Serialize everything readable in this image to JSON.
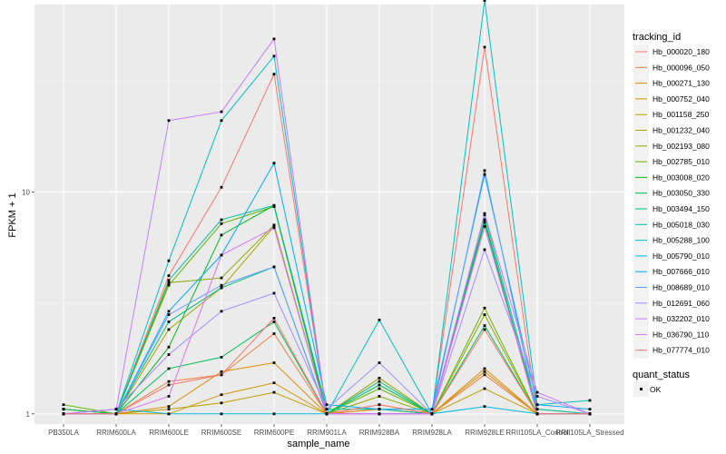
{
  "chart_data": {
    "type": "line",
    "xlabel": "sample_name",
    "ylabel": "FPKM + 1",
    "y_scale": "log10",
    "y_ticks": [
      1,
      10
    ],
    "ylim": [
      0.9,
      70
    ],
    "categories": [
      "PB350LA",
      "RRIM600LA",
      "RRIM600LE",
      "RRIM600SE",
      "RRIM600PE",
      "RRIM901LA",
      "RRIM928BA",
      "RRIM928LA",
      "RRIM928LE",
      "RRII105LA_Control",
      "RRII105LA_Stressed"
    ],
    "grid": true,
    "legend_position": "right",
    "legend_title": "tracking_id",
    "point_legend_title": "quant_status",
    "point_legend_label": "OK",
    "series": [
      {
        "name": "Hb_000020_180",
        "color": "#F8766D",
        "values": [
          1.0,
          1.0,
          4.2,
          10.5,
          34.0,
          1.0,
          1.05,
          1.0,
          45.0,
          1.0,
          1.0
        ]
      },
      {
        "name": "Hb_000096_050",
        "color": "#EE8044",
        "values": [
          1.05,
          1.0,
          1.4,
          1.5,
          2.3,
          1.0,
          1.1,
          1.0,
          1.5,
          1.0,
          1.0
        ]
      },
      {
        "name": "Hb_000271_130",
        "color": "#E18A00",
        "values": [
          1.0,
          1.0,
          1.08,
          1.55,
          1.7,
          1.0,
          1.05,
          1.0,
          1.6,
          1.0,
          1.0
        ]
      },
      {
        "name": "Hb_000752_040",
        "color": "#D09400",
        "values": [
          1.0,
          1.0,
          1.0,
          1.22,
          1.38,
          1.0,
          1.0,
          1.0,
          1.55,
          1.0,
          1.0
        ]
      },
      {
        "name": "Hb_001158_250",
        "color": "#BE9C00",
        "values": [
          1.0,
          1.0,
          1.05,
          1.12,
          1.25,
          1.0,
          1.0,
          1.0,
          1.3,
          1.0,
          1.0
        ]
      },
      {
        "name": "Hb_001232_040",
        "color": "#A8A400",
        "values": [
          1.05,
          1.0,
          2.4,
          3.7,
          7.0,
          1.0,
          1.45,
          1.0,
          7.0,
          1.05,
          1.0
        ]
      },
      {
        "name": "Hb_002193_080",
        "color": "#8CAB00",
        "values": [
          1.05,
          1.0,
          3.9,
          4.1,
          7.1,
          1.0,
          1.2,
          1.0,
          2.8,
          1.0,
          1.0
        ]
      },
      {
        "name": "Hb_002785_010",
        "color": "#64B200",
        "values": [
          1.1,
          1.0,
          3.8,
          7.2,
          8.6,
          1.0,
          1.3,
          1.0,
          3.0,
          1.0,
          1.0
        ]
      },
      {
        "name": "Hb_003008_020",
        "color": "#00B81F",
        "values": [
          1.0,
          1.0,
          2.0,
          6.4,
          8.7,
          1.0,
          1.0,
          1.0,
          7.5,
          1.0,
          1.0
        ]
      },
      {
        "name": "Hb_003050_330",
        "color": "#00BC56",
        "values": [
          1.05,
          1.0,
          1.6,
          1.8,
          2.6,
          1.0,
          1.35,
          1.0,
          2.5,
          1.0,
          1.0
        ]
      },
      {
        "name": "Hb_003494_150",
        "color": "#00BF7D",
        "values": [
          1.0,
          1.0,
          2.6,
          3.7,
          4.6,
          1.0,
          1.4,
          1.0,
          7.3,
          1.0,
          1.0
        ]
      },
      {
        "name": "Hb_005018_030",
        "color": "#00C19F",
        "values": [
          1.0,
          1.0,
          4.0,
          7.5,
          8.7,
          1.05,
          1.05,
          1.0,
          7.9,
          1.05,
          1.0
        ]
      },
      {
        "name": "Hb_005288_100",
        "color": "#00BFC4",
        "values": [
          1.0,
          1.0,
          4.9,
          21.0,
          41.0,
          1.0,
          2.65,
          1.0,
          73.0,
          1.1,
          1.15
        ]
      },
      {
        "name": "Hb_005790_010",
        "color": "#00B8E5",
        "values": [
          1.0,
          1.05,
          1.0,
          1.0,
          1.0,
          1.0,
          1.0,
          1.0,
          1.08,
          1.0,
          1.0
        ]
      },
      {
        "name": "Hb_007666_010",
        "color": "#00ACFC",
        "values": [
          1.0,
          1.0,
          2.9,
          5.2,
          13.5,
          1.1,
          1.05,
          1.05,
          12.0,
          1.1,
          1.05
        ]
      },
      {
        "name": "Hb_008689_010",
        "color": "#619CFF",
        "values": [
          1.0,
          1.0,
          2.8,
          3.8,
          4.6,
          1.0,
          1.0,
          1.0,
          12.5,
          1.0,
          1.0
        ]
      },
      {
        "name": "Hb_012691_060",
        "color": "#A58AFF",
        "values": [
          1.0,
          1.05,
          1.85,
          2.9,
          3.5,
          1.05,
          1.7,
          1.0,
          5.5,
          1.2,
          1.0
        ]
      },
      {
        "name": "Hb_032202_010",
        "color": "#C77CFF",
        "values": [
          1.0,
          1.05,
          21.0,
          23.0,
          49.0,
          1.0,
          1.0,
          1.0,
          8.0,
          1.25,
          1.0
        ]
      },
      {
        "name": "Hb_036790_110",
        "color": "#DF70F8",
        "values": [
          1.0,
          1.0,
          1.2,
          5.2,
          6.9,
          1.0,
          1.0,
          1.0,
          7.0,
          1.0,
          1.0
        ]
      },
      {
        "name": "Hb_077774_010",
        "color": "#F8766D",
        "values": [
          1.0,
          1.0,
          1.35,
          1.5,
          2.7,
          1.0,
          1.1,
          1.0,
          2.4,
          1.0,
          1.0
        ]
      }
    ]
  }
}
